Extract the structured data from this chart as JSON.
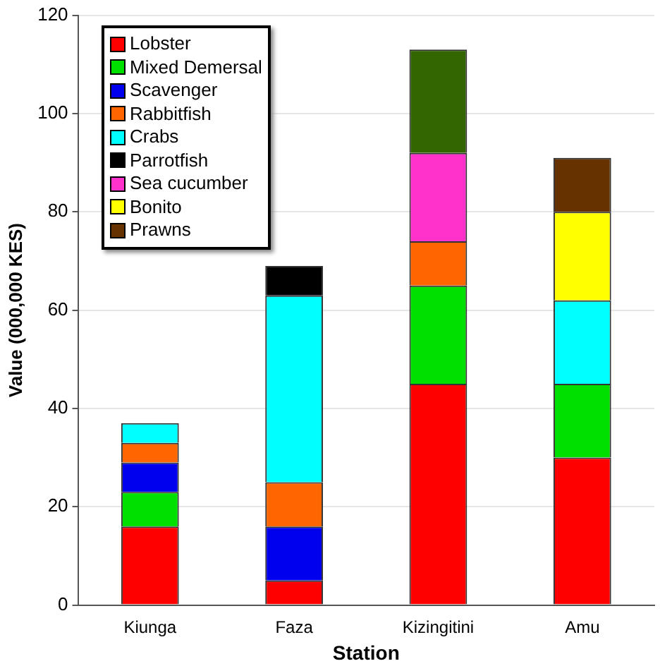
{
  "chart_data": {
    "type": "bar",
    "stacked": true,
    "xlabel": "Station",
    "ylabel": "Value (000,000 KES)",
    "categories": [
      "Kiunga",
      "Faza",
      "Kizingitini",
      "Amu"
    ],
    "ylim": [
      0,
      120
    ],
    "yticks": [
      0,
      20,
      40,
      60,
      80,
      100,
      120
    ],
    "grid": "y",
    "legend": "top left",
    "series": [
      {
        "name": "Lobster",
        "color": "#ff0000",
        "values": [
          16,
          5,
          45,
          30
        ]
      },
      {
        "name": "Mixed Demersal",
        "color": "#00e000",
        "values": [
          7,
          null,
          20,
          15
        ]
      },
      {
        "name": "Scavenger",
        "color": "#0000ee",
        "values": [
          6,
          11,
          null,
          null
        ]
      },
      {
        "name": "Rabbitfish",
        "color": "#ff6600",
        "values": [
          4,
          9,
          9,
          null
        ]
      },
      {
        "name": "Crabs",
        "color": "#00ffff",
        "values": [
          4,
          38,
          null,
          17
        ]
      },
      {
        "name": "Parrotfish",
        "color": "#000000",
        "values": [
          null,
          6,
          null,
          null
        ]
      },
      {
        "name": "Sea cucumber",
        "color": "#ff33cc",
        "values": [
          null,
          null,
          18,
          null
        ]
      },
      {
        "name": "Bonito",
        "color": "#ffff00",
        "values": [
          null,
          null,
          null,
          18
        ]
      },
      {
        "name": "Prawns",
        "color": "#663300",
        "values": [
          null,
          null,
          null,
          11
        ]
      },
      {
        "color": "#336600",
        "values": [
          null,
          null,
          21,
          null
        ]
      }
    ]
  }
}
